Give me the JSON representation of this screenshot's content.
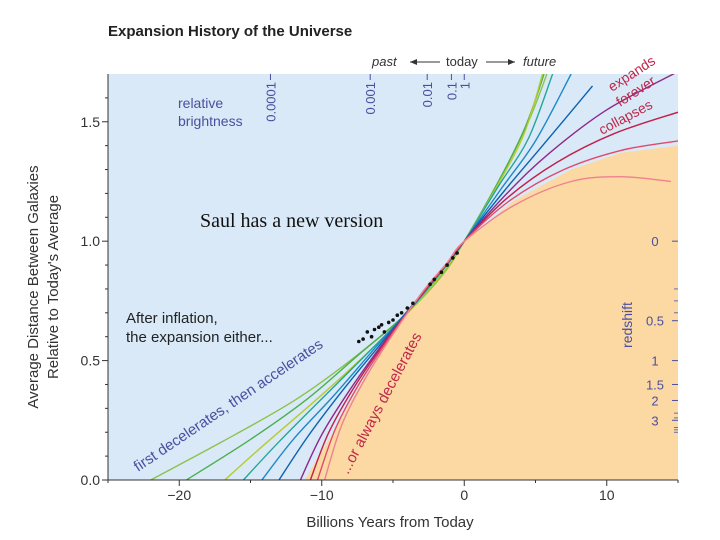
{
  "chart_data": {
    "type": "line",
    "title": "Expansion History of the Universe",
    "xlabel": "Billions Years from Today",
    "ylabel_lines": [
      "Average Distance Between Galaxies",
      "Relative to Today's Average"
    ],
    "xlim": [
      -25,
      15
    ],
    "ylim": [
      0,
      1.7
    ],
    "x_ticks": [
      -20,
      -10,
      0,
      10
    ],
    "x_tick_labels": [
      "−20",
      "−10",
      "0",
      "10"
    ],
    "y_ticks": [
      0,
      0.5,
      1.0,
      1.5
    ],
    "y_tick_labels": [
      "0.0",
      "0.5",
      "1.0",
      "1.5"
    ],
    "time_arrow": {
      "past": "past",
      "today": "today",
      "future": "future"
    },
    "brightness": {
      "label_lines": [
        "relative",
        "brightness"
      ],
      "ticks": [
        {
          "label": "0.0001",
          "x": -13.6
        },
        {
          "label": "0.001",
          "x": -6.6
        },
        {
          "label": "0.01",
          "x": -2.6
        },
        {
          "label": "0.1",
          "x": -0.9
        },
        {
          "label": "1",
          "x": 0
        }
      ]
    },
    "redshift": {
      "label": "redshift",
      "ticks": [
        {
          "label": "0",
          "y": 1.0
        },
        {
          "label": "0.5",
          "y": 0.667
        },
        {
          "label": "1",
          "y": 0.5
        },
        {
          "label": "1.5",
          "y": 0.4
        },
        {
          "label": "2",
          "y": 0.333
        },
        {
          "label": "3",
          "y": 0.25
        }
      ]
    },
    "annotations": {
      "inflation_lines": [
        "After inflation,",
        "the expansion either..."
      ],
      "accelerate": "first decelerates, then accelerates",
      "decelerate": "...or always decelerates",
      "expands": "expands",
      "forever": "forever",
      "collapses": "collapses"
    },
    "colors": {
      "accelerate_region": "#d9e9f7",
      "decelerate_region": "#fcd9a3",
      "text_blue": "#4a4fa0",
      "text_red": "#c0284a",
      "series": [
        "#8bc34a",
        "#4caf50",
        "#b5cc2e",
        "#26a69a",
        "#1e88c8",
        "#0c62b0",
        "#8e2a8a",
        "#c0204a",
        "#e04a6a",
        "#f08090"
      ]
    },
    "series": [
      {
        "points": [
          [
            -22,
            0
          ],
          [
            -17,
            0.16
          ],
          [
            -12,
            0.33
          ],
          [
            -8,
            0.5
          ],
          [
            -4,
            0.7
          ],
          [
            -1.5,
            0.86
          ],
          [
            0,
            1.0
          ],
          [
            2.5,
            1.26
          ],
          [
            4.5,
            1.5
          ],
          [
            5.8,
            1.7
          ]
        ]
      },
      {
        "points": [
          [
            -19.5,
            0
          ],
          [
            -15,
            0.17
          ],
          [
            -11,
            0.34
          ],
          [
            -7.5,
            0.52
          ],
          [
            -4,
            0.7
          ],
          [
            -1.5,
            0.87
          ],
          [
            0,
            1.0
          ],
          [
            2.4,
            1.25
          ],
          [
            4.3,
            1.48
          ],
          [
            5.6,
            1.7
          ]
        ]
      },
      {
        "points": [
          [
            -16.8,
            0
          ],
          [
            -14,
            0.15
          ],
          [
            -10.5,
            0.33
          ],
          [
            -7,
            0.52
          ],
          [
            -3.8,
            0.71
          ],
          [
            -1.5,
            0.87
          ],
          [
            0,
            1.0
          ],
          [
            2.3,
            1.23
          ],
          [
            4.2,
            1.45
          ],
          [
            5.5,
            1.7
          ]
        ]
      },
      {
        "points": [
          [
            -15.5,
            0
          ],
          [
            -13,
            0.16
          ],
          [
            -10,
            0.34
          ],
          [
            -6.8,
            0.53
          ],
          [
            -3.7,
            0.72
          ],
          [
            -1.5,
            0.88
          ],
          [
            0,
            1.0
          ],
          [
            2.4,
            1.23
          ],
          [
            4.5,
            1.43
          ],
          [
            6.2,
            1.7
          ]
        ]
      },
      {
        "points": [
          [
            -14.2,
            0
          ],
          [
            -12,
            0.17
          ],
          [
            -9.2,
            0.35
          ],
          [
            -6.3,
            0.55
          ],
          [
            -3.5,
            0.74
          ],
          [
            -1.4,
            0.89
          ],
          [
            0,
            1.0
          ],
          [
            2.6,
            1.22
          ],
          [
            5,
            1.42
          ],
          [
            7.5,
            1.7
          ]
        ]
      },
      {
        "points": [
          [
            -13,
            0
          ],
          [
            -11,
            0.18
          ],
          [
            -8.6,
            0.37
          ],
          [
            -6,
            0.56
          ],
          [
            -3.4,
            0.75
          ],
          [
            -1.4,
            0.89
          ],
          [
            0,
            1.0
          ],
          [
            2.8,
            1.21
          ],
          [
            5.5,
            1.4
          ],
          [
            9,
            1.65
          ]
        ]
      },
      {
        "points": [
          [
            -11.5,
            0
          ],
          [
            -10,
            0.19
          ],
          [
            -8,
            0.38
          ],
          [
            -5.6,
            0.58
          ],
          [
            -3.2,
            0.76
          ],
          [
            -1.3,
            0.9
          ],
          [
            0,
            1.0
          ],
          [
            3,
            1.2
          ],
          [
            6,
            1.37
          ],
          [
            10,
            1.55
          ],
          [
            15,
            1.71
          ]
        ]
      },
      {
        "points": [
          [
            -10.8,
            0
          ],
          [
            -9.5,
            0.2
          ],
          [
            -7.6,
            0.4
          ],
          [
            -5.4,
            0.59
          ],
          [
            -3.1,
            0.77
          ],
          [
            -1.3,
            0.9
          ],
          [
            0,
            1.0
          ],
          [
            3,
            1.18
          ],
          [
            6.5,
            1.33
          ],
          [
            10.5,
            1.45
          ],
          [
            15,
            1.54
          ]
        ]
      },
      {
        "points": [
          [
            -10.3,
            0
          ],
          [
            -9,
            0.22
          ],
          [
            -7.2,
            0.42
          ],
          [
            -5.2,
            0.6
          ],
          [
            -3,
            0.78
          ],
          [
            -1.3,
            0.9
          ],
          [
            0,
            1.0
          ],
          [
            3.2,
            1.17
          ],
          [
            7,
            1.3
          ],
          [
            11,
            1.38
          ],
          [
            15,
            1.42
          ]
        ]
      },
      {
        "points": [
          [
            -9.8,
            0
          ],
          [
            -8.6,
            0.23
          ],
          [
            -6.9,
            0.43
          ],
          [
            -5,
            0.61
          ],
          [
            -2.9,
            0.79
          ],
          [
            -1.2,
            0.91
          ],
          [
            0,
            1.0
          ],
          [
            3.5,
            1.15
          ],
          [
            7.5,
            1.25
          ],
          [
            11,
            1.27
          ],
          [
            14.5,
            1.25
          ]
        ]
      }
    ],
    "observations": [
      [
        -7.4,
        0.58
      ],
      [
        -7.1,
        0.59
      ],
      [
        -6.8,
        0.62
      ],
      [
        -6.5,
        0.6
      ],
      [
        -6.3,
        0.63
      ],
      [
        -6.0,
        0.64
      ],
      [
        -5.8,
        0.65
      ],
      [
        -5.6,
        0.62
      ],
      [
        -5.3,
        0.66
      ],
      [
        -5.0,
        0.67
      ],
      [
        -4.7,
        0.69
      ],
      [
        -4.4,
        0.7
      ],
      [
        -4.0,
        0.72
      ],
      [
        -3.6,
        0.74
      ],
      [
        -2.4,
        0.82
      ],
      [
        -2.1,
        0.84
      ],
      [
        -1.6,
        0.87
      ],
      [
        -1.2,
        0.9
      ],
      [
        -0.8,
        0.93
      ],
      [
        -0.5,
        0.95
      ]
    ]
  },
  "overlay_note": "Saul has a new version"
}
